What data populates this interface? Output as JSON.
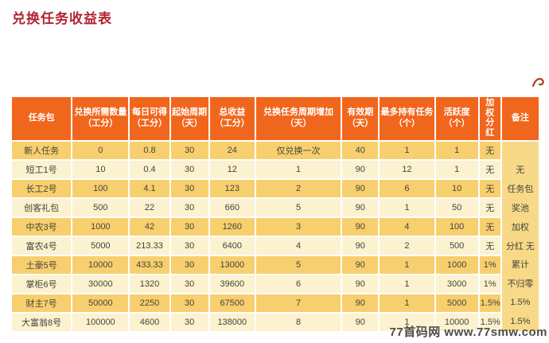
{
  "page": {
    "title": "兑换任务收益表",
    "watermark": "77首码网  www.77smw.com"
  },
  "colors": {
    "title_red": "#b1232e",
    "header_orange": "#f1661d",
    "row_gold": "#f8cf6e",
    "row_cream": "#fcf2cf",
    "remark_gold": "#f7d987",
    "annotation_red": "#b23a2a"
  },
  "table": {
    "headers": [
      "任务包",
      "兑换所需数量（工分）",
      "每日可得（工分）",
      "起始周期（天）",
      "总收益（工分）",
      "兑换任务周期增加（天）",
      "有效期（天）",
      "最多持有任务（个）",
      "活跃度（个）",
      "加权分红",
      "备注"
    ],
    "rows": [
      {
        "cells": [
          "新人任务",
          "0",
          "0.8",
          "30",
          "24",
          "仅兑换一次",
          "40",
          "1",
          "1",
          "无"
        ]
      },
      {
        "cells": [
          "短工1号",
          "10",
          "0.4",
          "30",
          "12",
          "1",
          "90",
          "12",
          "1",
          "无"
        ]
      },
      {
        "cells": [
          "长工2号",
          "100",
          "4.1",
          "30",
          "123",
          "2",
          "90",
          "6",
          "10",
          "无"
        ]
      },
      {
        "cells": [
          "创客礼包",
          "500",
          "22",
          "30",
          "660",
          "5",
          "90",
          "1",
          "50",
          "无"
        ]
      },
      {
        "cells": [
          "中农3号",
          "1000",
          "42",
          "30",
          "1260",
          "3",
          "90",
          "4",
          "100",
          "无"
        ]
      },
      {
        "cells": [
          "富农4号",
          "5000",
          "213.33",
          "30",
          "6400",
          "4",
          "90",
          "2",
          "500",
          "无"
        ]
      },
      {
        "cells": [
          "土豪5号",
          "10000",
          "433.33",
          "30",
          "13000",
          "5",
          "90",
          "1",
          "1000",
          "1%"
        ]
      },
      {
        "cells": [
          "掌柜6号",
          "30000",
          "1320",
          "30",
          "39600",
          "6",
          "90",
          "1",
          "3000",
          "1%"
        ]
      },
      {
        "cells": [
          "财主7号",
          "50000",
          "2250",
          "30",
          "67500",
          "7",
          "90",
          "1",
          "5000",
          "1.5%"
        ]
      },
      {
        "cells": [
          "大富翁8号",
          "100000",
          "4600",
          "30",
          "138000",
          "8",
          "90",
          "1",
          "10000",
          "1.5%"
        ]
      }
    ],
    "remark_lines": [
      "",
      "无",
      "任务包",
      "奖池",
      "加权",
      "分红 无",
      "累计",
      "不归零",
      "1.5%",
      "1.5%"
    ]
  }
}
